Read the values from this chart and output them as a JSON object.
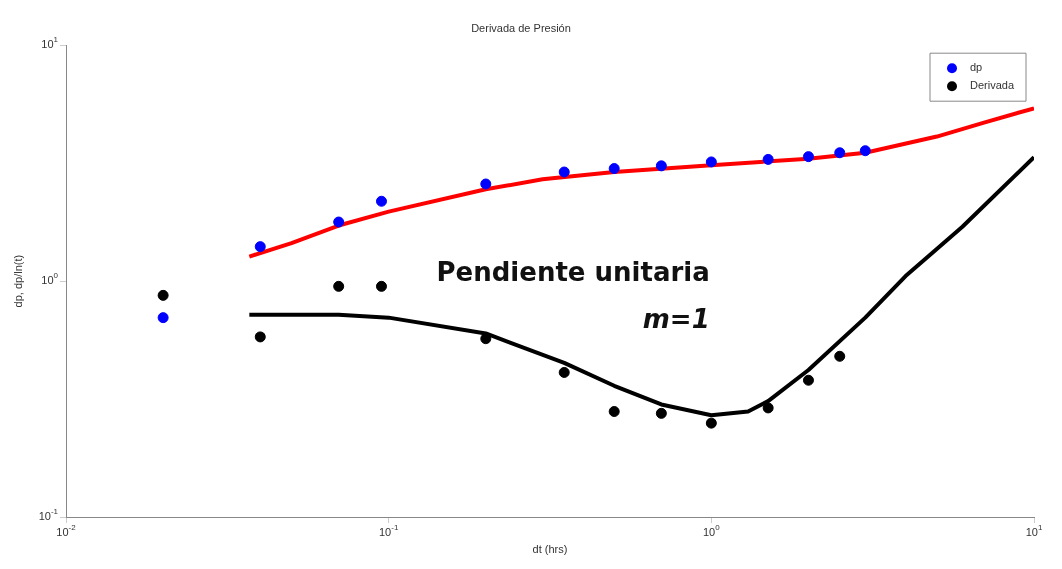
{
  "chart_data": {
    "type": "scatter",
    "title": "Derivada de Presión",
    "xlabel": "dt (hrs)",
    "ylabel": "dp, dp/ln(t)",
    "log": "xy",
    "grid": false,
    "legend": "top right",
    "marker": "circle",
    "xlim": [
      0.01,
      10
    ],
    "ylim": [
      0.1,
      10
    ],
    "xticks": [
      {
        "value": 0.01,
        "label": "10$^{-2}$"
      },
      {
        "value": 0.1,
        "label": "10$^{-1}$"
      },
      {
        "value": 1,
        "label": "10$^{0}$"
      },
      {
        "value": 10,
        "label": "10$^{1}$"
      }
    ],
    "yticks": [
      {
        "value": 0.1,
        "label": "10$^{-1}$"
      },
      {
        "value": 1,
        "label": "10$^{0}$"
      },
      {
        "value": 10,
        "label": "10$^{1}$"
      }
    ],
    "annotations": [
      "Pendiente unitaria",
      "m=1"
    ],
    "series": [
      {
        "name": "dp",
        "type": "scatter",
        "color": "#0000ff",
        "x": [
          0.02,
          0.04,
          0.07,
          0.095,
          0.2,
          0.35,
          0.5,
          0.7,
          1,
          1.5,
          2,
          2.5,
          3
        ],
        "values": [
          0.7,
          1.4,
          1.78,
          2.18,
          2.58,
          2.9,
          3.0,
          3.08,
          3.2,
          3.28,
          3.37,
          3.5,
          3.57
        ]
      },
      {
        "name": "Derivada",
        "type": "scatter",
        "color": "#000000",
        "x": [
          0.02,
          0.04,
          0.07,
          0.095,
          0.2,
          0.35,
          0.5,
          0.7,
          1,
          1.5,
          2,
          2.5
        ],
        "values": [
          0.87,
          0.58,
          0.95,
          0.95,
          0.57,
          0.41,
          0.28,
          0.275,
          0.25,
          0.29,
          0.38,
          0.48
        ]
      },
      {
        "type": "line",
        "marker": "none",
        "color": "#ff0000",
        "x": [
          0.037,
          0.05,
          0.07,
          0.1,
          0.2,
          0.3,
          0.5,
          1,
          2,
          3,
          5,
          7,
          10
        ],
        "values": [
          1.27,
          1.45,
          1.72,
          1.97,
          2.45,
          2.7,
          2.9,
          3.1,
          3.3,
          3.5,
          4.1,
          4.7,
          5.4
        ]
      },
      {
        "type": "line",
        "marker": "none",
        "color": "#000000",
        "x": [
          0.037,
          0.07,
          0.1,
          0.2,
          0.35,
          0.5,
          0.7,
          1,
          1.3,
          1.5,
          2,
          3,
          4,
          6,
          10
        ],
        "values": [
          0.72,
          0.72,
          0.7,
          0.6,
          0.45,
          0.36,
          0.3,
          0.27,
          0.28,
          0.31,
          0.42,
          0.7,
          1.05,
          1.7,
          3.35
        ]
      }
    ]
  }
}
